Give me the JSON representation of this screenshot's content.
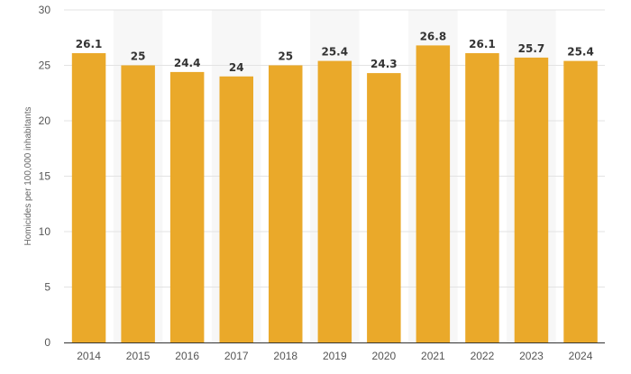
{
  "chart_data": {
    "type": "bar",
    "categories": [
      "2014",
      "2015",
      "2016",
      "2017",
      "2018",
      "2019",
      "2020",
      "2021",
      "2022",
      "2023",
      "2024"
    ],
    "values": [
      26.1,
      25,
      24.4,
      24,
      25,
      25.4,
      24.3,
      26.8,
      26.1,
      25.7,
      25.4
    ],
    "value_labels": [
      "26.1",
      "25",
      "24.4",
      "24",
      "25",
      "25.4",
      "24.3",
      "26.8",
      "26.1",
      "25.7",
      "25.4"
    ],
    "ylabel": "Homicides per 100,000 inhabitants",
    "ylim": [
      0,
      30
    ],
    "yticks": [
      "0",
      "5",
      "10",
      "15",
      "20",
      "25",
      "30"
    ],
    "grid": true,
    "colors": {
      "bar": "#EAA92A",
      "band": "#F7F7F7",
      "grid": "#E3E3E3",
      "axis": "#333333"
    }
  }
}
